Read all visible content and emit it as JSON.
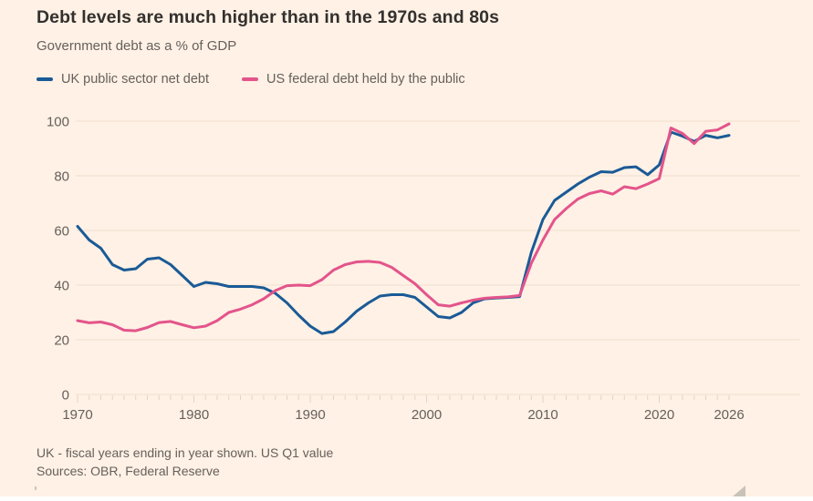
{
  "title": "Debt levels are much higher than in the 1970s and 80s",
  "subtitle": "Government debt as a % of GDP",
  "footnote": "UK - fiscal years ending in year shown. US Q1 value",
  "source": "Sources: OBR, Federal Reserve",
  "colors": {
    "background": "#fff1e5",
    "title_text": "#33302e",
    "muted_text": "#66605c",
    "gridline": "#efdfd0",
    "tick": "#e5d4c3",
    "uk_line": "#1a5a96",
    "us_line": "#e3548b"
  },
  "chart_data": {
    "type": "line",
    "title": "Debt levels are much higher than in the 1970s and 80s",
    "subtitle": "Government debt as a % of GDP",
    "xlabel": "",
    "ylabel": "Government debt as a % of GDP",
    "xlim": [
      1970,
      2026
    ],
    "ylim": [
      0,
      100
    ],
    "grid": true,
    "legend_position": "top",
    "yticks": [
      0,
      20,
      40,
      60,
      80,
      100
    ],
    "xticks": [
      1970,
      1980,
      1990,
      2000,
      2010,
      2020,
      2026
    ],
    "x": [
      1970,
      1971,
      1972,
      1973,
      1974,
      1975,
      1976,
      1977,
      1978,
      1979,
      1980,
      1981,
      1982,
      1983,
      1984,
      1985,
      1986,
      1987,
      1988,
      1989,
      1990,
      1991,
      1992,
      1993,
      1994,
      1995,
      1996,
      1997,
      1998,
      1999,
      2000,
      2001,
      2002,
      2003,
      2004,
      2005,
      2006,
      2007,
      2008,
      2009,
      2010,
      2011,
      2012,
      2013,
      2014,
      2015,
      2016,
      2017,
      2018,
      2019,
      2020,
      2021,
      2022,
      2023,
      2024,
      2025,
      2026
    ],
    "series": [
      {
        "name": "UK public sector net debt",
        "color": "#1a5a96",
        "values": [
          61.5,
          56.5,
          53.5,
          47.5,
          45.5,
          46,
          49.5,
          50,
          47.5,
          43.5,
          39.5,
          41,
          40.5,
          39.5,
          39.5,
          39.5,
          39,
          37,
          33.5,
          29,
          25,
          22.3,
          23,
          26.5,
          30.5,
          33.5,
          36,
          36.5,
          36.5,
          35.5,
          32,
          28.5,
          28,
          30,
          33.5,
          35,
          35.3,
          35.5,
          35.8,
          52,
          64,
          71,
          74,
          77,
          79.5,
          81.5,
          81.3,
          83,
          83.3,
          80.4,
          84,
          96,
          94.5,
          92.6,
          94.8,
          93.9,
          94.8
        ]
      },
      {
        "name": "US federal debt held by the public",
        "color": "#e3548b",
        "values": [
          27,
          26.2,
          26.5,
          25.5,
          23.5,
          23.3,
          24.5,
          26.3,
          26.7,
          25.5,
          24.4,
          25,
          27,
          30,
          31.2,
          32.8,
          35,
          38,
          39.8,
          40,
          39.8,
          42,
          45.5,
          47.5,
          48.5,
          48.7,
          48.3,
          46.5,
          43.5,
          40.5,
          36.5,
          32.8,
          32.3,
          33.5,
          34.5,
          35.2,
          35.5,
          35.7,
          36.2,
          48,
          56.5,
          64,
          68,
          71.5,
          73.5,
          74.5,
          73.3,
          76,
          75.3,
          77,
          79,
          97.5,
          95.5,
          91.8,
          96.3,
          96.8,
          99
        ]
      }
    ]
  }
}
